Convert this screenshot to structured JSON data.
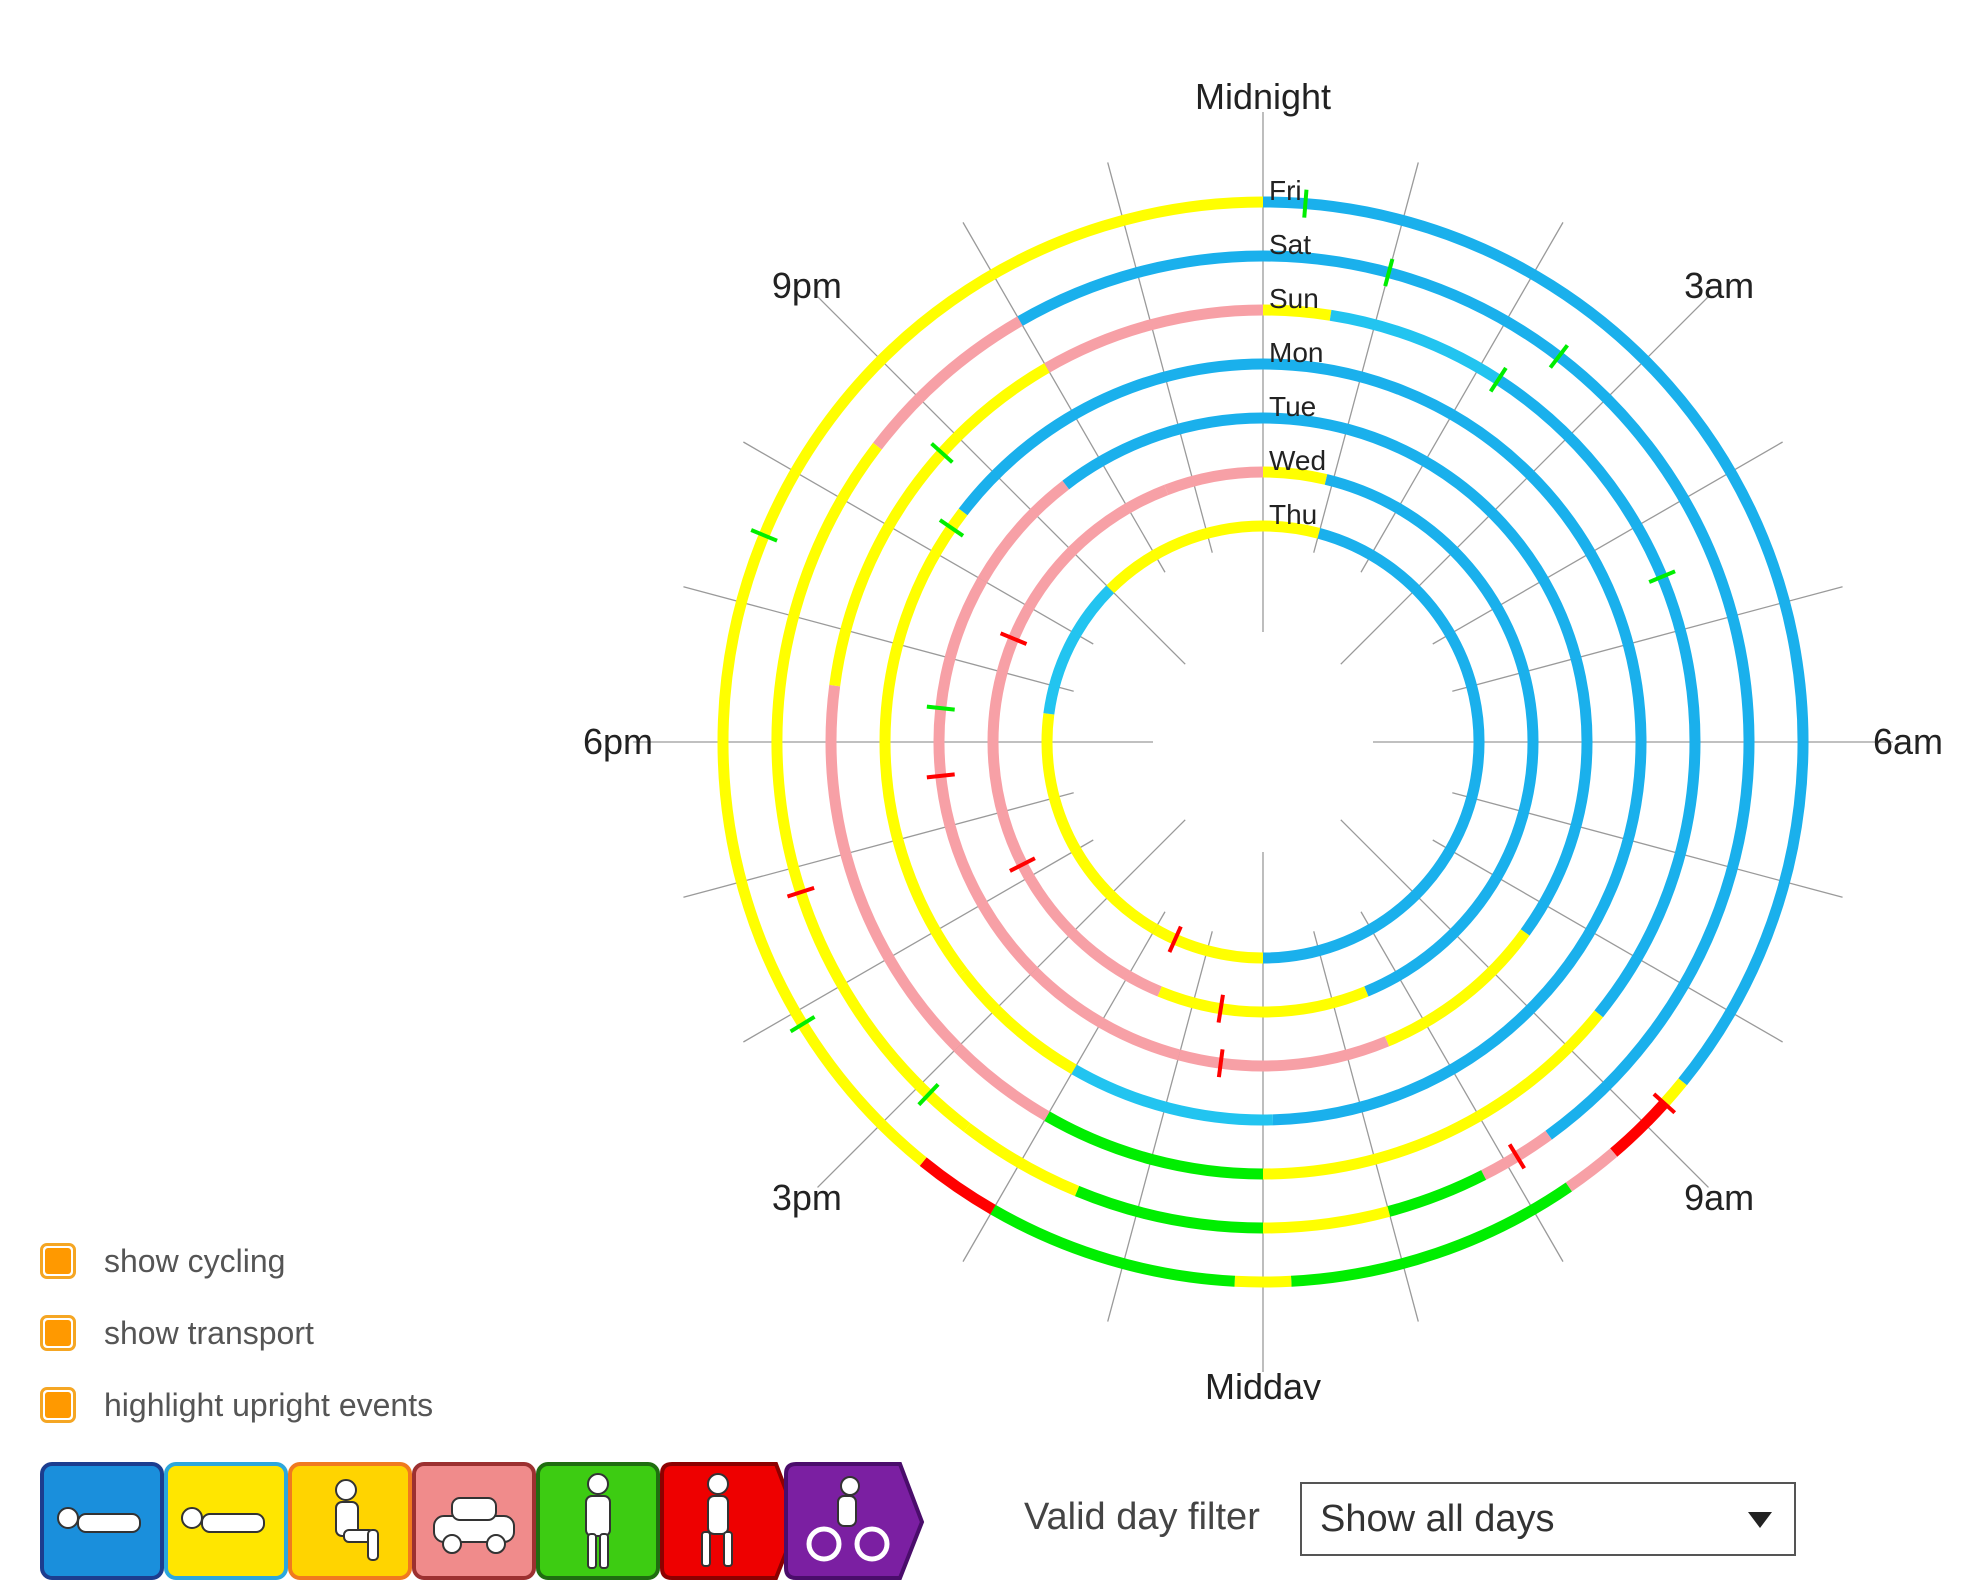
{
  "chart_data": {
    "type": "radial-activity",
    "clock_start": "Midnight",
    "hour_labels": [
      {
        "hour": 0,
        "text": "Midnight"
      },
      {
        "hour": 3,
        "text": "3am"
      },
      {
        "hour": 6,
        "text": "6am"
      },
      {
        "hour": 9,
        "text": "9am"
      },
      {
        "hour": 12,
        "text": "Midday"
      },
      {
        "hour": 15,
        "text": "3pm"
      },
      {
        "hour": 18,
        "text": "6pm"
      },
      {
        "hour": 21,
        "text": "9pm"
      }
    ],
    "categories": [
      "sleep",
      "lying",
      "sitting",
      "transport",
      "standing",
      "stepping",
      "cycling"
    ],
    "colors": {
      "sleep": "#1ab0ec",
      "lying": "#22c4f0",
      "sitting": "#ffff00",
      "transport": "#f7a0a6",
      "standing": "#00ee00",
      "stepping": "#ff0000",
      "cycling": "#7b1fa2"
    },
    "days": [
      {
        "day": "Fri",
        "segments": [
          {
            "start": 0.0,
            "end": 8.6,
            "activity": "sleep"
          },
          {
            "start": 8.6,
            "end": 8.8,
            "activity": "sitting"
          },
          {
            "start": 8.8,
            "end": 9.3,
            "activity": "stepping"
          },
          {
            "start": 9.3,
            "end": 9.7,
            "activity": "transport"
          },
          {
            "start": 9.7,
            "end": 11.8,
            "activity": "standing"
          },
          {
            "start": 11.8,
            "end": 12.2,
            "activity": "sitting"
          },
          {
            "start": 12.2,
            "end": 14.0,
            "activity": "standing"
          },
          {
            "start": 14.0,
            "end": 14.6,
            "activity": "stepping"
          },
          {
            "start": 14.6,
            "end": 24.0,
            "activity": "sitting"
          }
        ]
      },
      {
        "day": "Sat",
        "segments": [
          {
            "start": 0.0,
            "end": 9.6,
            "activity": "sleep"
          },
          {
            "start": 9.6,
            "end": 10.2,
            "activity": "transport"
          },
          {
            "start": 10.2,
            "end": 11.0,
            "activity": "standing"
          },
          {
            "start": 11.0,
            "end": 12.0,
            "activity": "sitting"
          },
          {
            "start": 12.0,
            "end": 13.5,
            "activity": "standing"
          },
          {
            "start": 13.5,
            "end": 14.5,
            "activity": "sitting"
          },
          {
            "start": 14.5,
            "end": 20.5,
            "activity": "sitting"
          },
          {
            "start": 20.5,
            "end": 22.0,
            "activity": "transport"
          },
          {
            "start": 22.0,
            "end": 24.0,
            "activity": "sleep"
          }
        ]
      },
      {
        "day": "Sun",
        "segments": [
          {
            "start": 0.0,
            "end": 0.6,
            "activity": "sitting"
          },
          {
            "start": 0.6,
            "end": 2.2,
            "activity": "lying"
          },
          {
            "start": 2.2,
            "end": 8.6,
            "activity": "sleep"
          },
          {
            "start": 8.6,
            "end": 12.0,
            "activity": "sitting"
          },
          {
            "start": 12.0,
            "end": 14.0,
            "activity": "standing"
          },
          {
            "start": 14.0,
            "end": 15.0,
            "activity": "transport"
          },
          {
            "start": 15.0,
            "end": 18.5,
            "activity": "transport"
          },
          {
            "start": 18.5,
            "end": 22.0,
            "activity": "sitting"
          },
          {
            "start": 22.0,
            "end": 24.0,
            "activity": "transport"
          }
        ]
      },
      {
        "day": "Mon",
        "segments": [
          {
            "start": 0.0,
            "end": 11.9,
            "activity": "sleep"
          },
          {
            "start": 11.9,
            "end": 14.0,
            "activity": "lying"
          },
          {
            "start": 14.0,
            "end": 15.5,
            "activity": "sitting"
          },
          {
            "start": 15.5,
            "end": 20.5,
            "activity": "sitting"
          },
          {
            "start": 20.5,
            "end": 24.0,
            "activity": "sleep"
          }
        ]
      },
      {
        "day": "Tue",
        "segments": [
          {
            "start": 0.0,
            "end": 8.4,
            "activity": "sleep"
          },
          {
            "start": 8.4,
            "end": 10.5,
            "activity": "sitting"
          },
          {
            "start": 10.5,
            "end": 13.0,
            "activity": "transport"
          },
          {
            "start": 13.0,
            "end": 15.0,
            "activity": "transport"
          },
          {
            "start": 15.0,
            "end": 20.0,
            "activity": "transport"
          },
          {
            "start": 20.0,
            "end": 21.5,
            "activity": "transport"
          },
          {
            "start": 21.5,
            "end": 24.0,
            "activity": "sleep"
          }
        ]
      },
      {
        "day": "Wed",
        "segments": [
          {
            "start": 0.0,
            "end": 0.9,
            "activity": "sitting"
          },
          {
            "start": 0.9,
            "end": 10.5,
            "activity": "sleep"
          },
          {
            "start": 10.5,
            "end": 13.5,
            "activity": "sitting"
          },
          {
            "start": 13.5,
            "end": 18.0,
            "activity": "transport"
          },
          {
            "start": 18.0,
            "end": 22.6,
            "activity": "transport"
          },
          {
            "start": 22.6,
            "end": 24.0,
            "activity": "transport"
          }
        ]
      },
      {
        "day": "Thu",
        "segments": [
          {
            "start": 0.0,
            "end": 1.0,
            "activity": "sitting"
          },
          {
            "start": 1.0,
            "end": 12.0,
            "activity": "sleep"
          },
          {
            "start": 12.0,
            "end": 14.0,
            "activity": "sitting"
          },
          {
            "start": 14.0,
            "end": 18.5,
            "activity": "sitting"
          },
          {
            "start": 18.5,
            "end": 21.0,
            "activity": "lying"
          },
          {
            "start": 21.0,
            "end": 24.0,
            "activity": "sitting"
          }
        ]
      }
    ],
    "events": [
      {
        "day": "Fri",
        "hour": 0.3,
        "activity": "standing"
      },
      {
        "day": "Sat",
        "hour": 1.0,
        "activity": "standing"
      },
      {
        "day": "Sat",
        "hour": 2.5,
        "activity": "standing"
      },
      {
        "day": "Sun",
        "hour": 2.2,
        "activity": "standing"
      },
      {
        "day": "Sun",
        "hour": 4.5,
        "activity": "standing"
      },
      {
        "day": "Fri",
        "hour": 8.8,
        "activity": "stepping"
      },
      {
        "day": "Sat",
        "hour": 9.9,
        "activity": "stepping"
      },
      {
        "day": "Tue",
        "hour": 12.5,
        "activity": "stepping"
      },
      {
        "day": "Wed",
        "hour": 12.6,
        "activity": "stepping"
      },
      {
        "day": "Thu",
        "hour": 13.6,
        "activity": "stepping"
      },
      {
        "day": "Wed",
        "hour": 16.2,
        "activity": "stepping"
      },
      {
        "day": "Tue",
        "hour": 17.6,
        "activity": "stepping"
      },
      {
        "day": "Wed",
        "hour": 19.5,
        "activity": "stepping"
      },
      {
        "day": "Tue",
        "hour": 18.4,
        "activity": "standing"
      },
      {
        "day": "Mon",
        "hour": 20.3,
        "activity": "standing"
      },
      {
        "day": "Sun",
        "hour": 20.8,
        "activity": "standing"
      },
      {
        "day": "Fri",
        "hour": 15.9,
        "activity": "standing"
      },
      {
        "day": "Sat",
        "hour": 16.8,
        "activity": "stepping"
      },
      {
        "day": "Fri",
        "hour": 19.5,
        "activity": "standing"
      },
      {
        "day": "Sat",
        "hour": 14.9,
        "activity": "standing"
      }
    ]
  },
  "controls": [
    {
      "label": "show cycling",
      "checked": true
    },
    {
      "label": "show transport",
      "checked": true
    },
    {
      "label": "highlight upright events",
      "checked": true
    }
  ],
  "legend": [
    {
      "name": "sleep-icon",
      "color": "#1a8fdc",
      "border": "#1c3d8f",
      "shape": "rect"
    },
    {
      "name": "lying-icon",
      "color": "#ffe600",
      "border": "#2ca7dd",
      "shape": "rect"
    },
    {
      "name": "sitting-icon",
      "color": "#ffd400",
      "border": "#f07a1f",
      "shape": "rect"
    },
    {
      "name": "transport-icon",
      "color": "#f08b8b",
      "border": "#9c3030",
      "shape": "rect"
    },
    {
      "name": "standing-icon",
      "color": "#3dcc12",
      "border": "#1f6d10",
      "shape": "rect"
    },
    {
      "name": "stepping-icon",
      "color": "#ee0000",
      "border": "#8c0000",
      "shape": "arrow"
    },
    {
      "name": "cycling-icon",
      "color": "#7b1fa2",
      "border": "#4a0d6b",
      "shape": "arrow"
    }
  ],
  "filter": {
    "label": "Valid day filter",
    "value": "Show all days"
  }
}
